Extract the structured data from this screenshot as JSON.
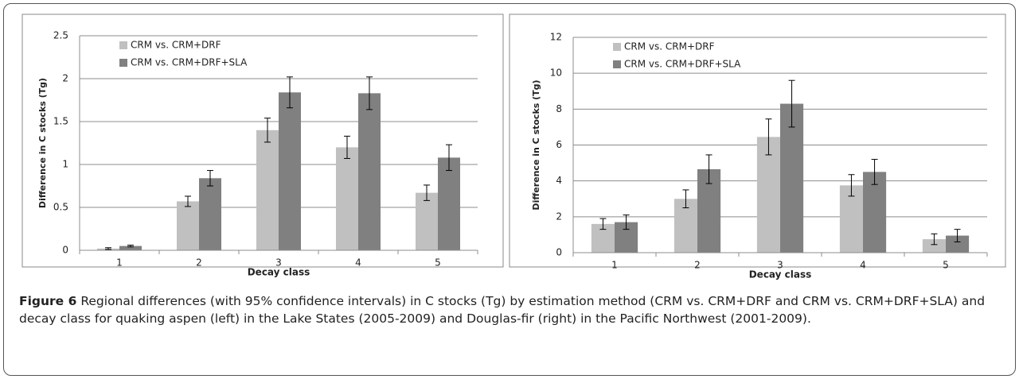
{
  "chart_data": [
    {
      "type": "bar",
      "x_label": "Decay class",
      "y_label": "Difference in C stocks (Tg)",
      "categories": [
        "1",
        "2",
        "3",
        "4",
        "5"
      ],
      "series": [
        {
          "name": "CRM vs. CRM+DRF",
          "color": "#c0c0c0",
          "values": [
            0.02,
            0.57,
            1.4,
            1.2,
            0.67
          ],
          "errors": [
            0.01,
            0.06,
            0.14,
            0.13,
            0.09
          ]
        },
        {
          "name": "CRM vs. CRM+DRF+SLA",
          "color": "#808080",
          "values": [
            0.05,
            0.84,
            1.84,
            1.83,
            1.08
          ],
          "errors": [
            0.01,
            0.09,
            0.18,
            0.19,
            0.15
          ]
        }
      ],
      "ylim": [
        0,
        2.5
      ],
      "yticks": [
        0,
        0.5,
        1,
        1.5,
        2,
        2.5
      ],
      "grid": true,
      "legend": "top-left"
    },
    {
      "type": "bar",
      "x_label": "Decay class",
      "y_label": "Difference in C stocks (Tg)",
      "categories": [
        "1",
        "2",
        "3",
        "4",
        "5"
      ],
      "series": [
        {
          "name": "CRM vs. CRM+DRF",
          "color": "#c0c0c0",
          "values": [
            1.6,
            3.0,
            6.45,
            3.75,
            0.75
          ],
          "errors": [
            0.3,
            0.5,
            1.0,
            0.6,
            0.3
          ]
        },
        {
          "name": "CRM vs. CRM+DRF+SLA",
          "color": "#808080",
          "values": [
            1.7,
            4.65,
            8.3,
            4.5,
            0.95
          ],
          "errors": [
            0.4,
            0.8,
            1.3,
            0.7,
            0.35
          ]
        }
      ],
      "ylim": [
        0,
        12
      ],
      "yticks": [
        0,
        2,
        4,
        6,
        8,
        10,
        12
      ],
      "grid": true,
      "legend": "top-left"
    }
  ],
  "caption": {
    "label": "Figure 6",
    "text": "Regional differences (with 95% confidence intervals) in C stocks (Tg) by estimation method (CRM vs. CRM+DRF and CRM vs. CRM+DRF+SLA) and decay class for quaking aspen (left) in the Lake States (2005-2009) and Douglas-fir (right) in the Pacific Northwest (2001-2009)."
  }
}
